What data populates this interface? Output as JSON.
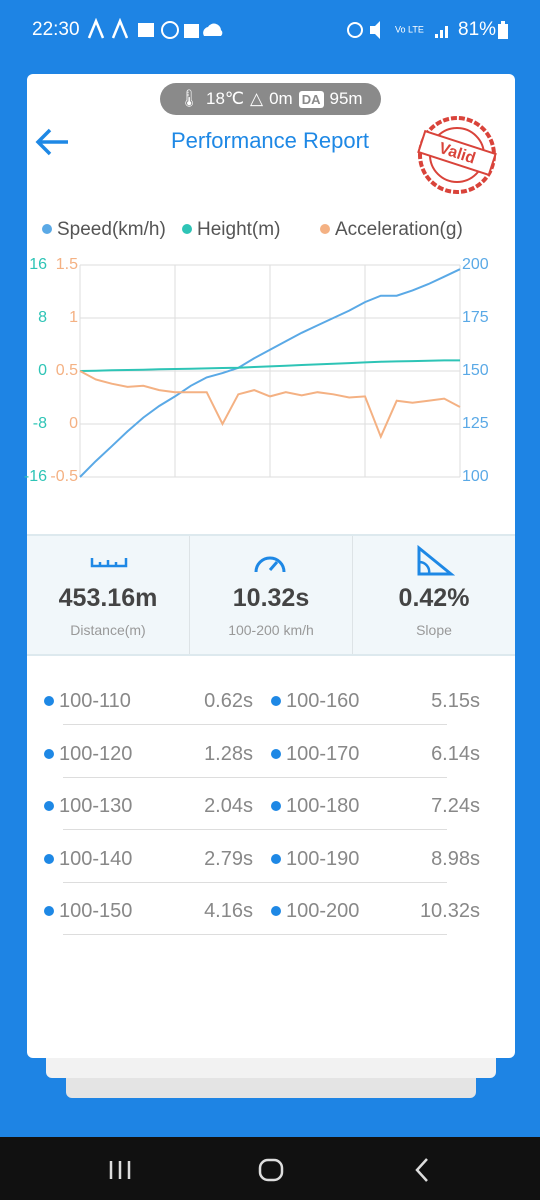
{
  "status_bar": {
    "time": "22:30",
    "battery": "81%"
  },
  "header": {
    "temperature": "18℃",
    "altitude": "0m",
    "da_badge": "DA",
    "da_value": "95m",
    "title": "Performance Report",
    "stamp": "Valid"
  },
  "chart_data": {
    "type": "line",
    "series": [
      {
        "name": "Speed(km/h)",
        "color": "#5aa9e6",
        "axis": "y2",
        "values": [
          100,
          107.5,
          114.5,
          121.5,
          128,
          133.5,
          138,
          143,
          147,
          149,
          151.5,
          156,
          160,
          164,
          168,
          171.5,
          175,
          178.5,
          182.5,
          185.5,
          185.5,
          188,
          191,
          194.5,
          198
        ]
      },
      {
        "name": "Height(m)",
        "color": "#2ec4b6",
        "axis": "y",
        "values": [
          0,
          0.05,
          0.1,
          0.15,
          0.2,
          0.25,
          0.3,
          0.35,
          0.4,
          0.45,
          0.5,
          0.6,
          0.7,
          0.8,
          0.9,
          1,
          1.1,
          1.2,
          1.3,
          1.4,
          1.45,
          1.5,
          1.55,
          1.6,
          1.6
        ]
      },
      {
        "name": "Acceleration(g)",
        "color": "#f4b183",
        "axis": "y3",
        "values": [
          0.5,
          0.42,
          0.38,
          0.35,
          0.36,
          0.32,
          0.3,
          0.3,
          0.3,
          0.0,
          0.28,
          0.32,
          0.26,
          0.3,
          0.27,
          0.3,
          0.28,
          0.25,
          0.26,
          -0.12,
          0.22,
          0.2,
          0.22,
          0.24,
          0.16
        ]
      }
    ],
    "ylim": [
      -16,
      16
    ],
    "yticks": [
      16,
      8,
      0,
      -8,
      -16
    ],
    "y2lim": [
      100,
      200
    ],
    "y2ticks": [
      200,
      175,
      150,
      125,
      100
    ],
    "y3lim": [
      -0.5,
      1.5
    ],
    "y3ticks": [
      1.5,
      1,
      0.5,
      0,
      -0.5
    ],
    "grid": true
  },
  "stats": [
    {
      "value": "453.16m",
      "label": "Distance(m)"
    },
    {
      "value": "10.32s",
      "label": "100-200 km/h"
    },
    {
      "value": "0.42%",
      "label": "Slope"
    }
  ],
  "splits": [
    {
      "range": "100-110",
      "time": "0.62s"
    },
    {
      "range": "100-120",
      "time": "1.28s"
    },
    {
      "range": "100-130",
      "time": "2.04s"
    },
    {
      "range": "100-140",
      "time": "2.79s"
    },
    {
      "range": "100-150",
      "time": "4.16s"
    },
    {
      "range": "100-160",
      "time": "5.15s"
    },
    {
      "range": "100-170",
      "time": "6.14s"
    },
    {
      "range": "100-180",
      "time": "7.24s"
    },
    {
      "range": "100-190",
      "time": "8.98s"
    },
    {
      "range": "100-200",
      "time": "10.32s"
    }
  ]
}
